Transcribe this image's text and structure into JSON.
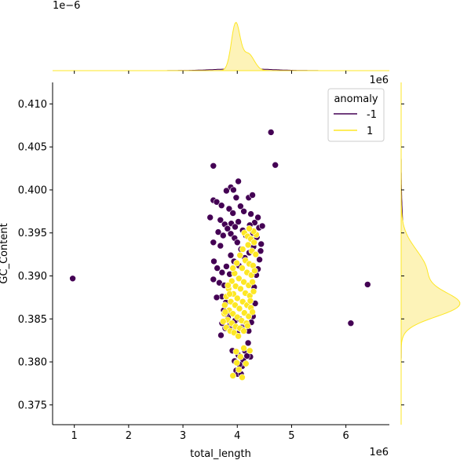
{
  "chart_data": {
    "type": "scatter",
    "title": "",
    "xlabel": "total_length",
    "ylabel": "GC_Content",
    "x_offset_label": "1e6",
    "y_offset_label": "",
    "top_marginal_offset_label": "1e−6",
    "right_marginal_offset_label": "1e6",
    "xlim": [
      0.6,
      6.8
    ],
    "ylim": [
      0.3727,
      0.4125
    ],
    "x_ticks": [
      1,
      2,
      3,
      4,
      5,
      6
    ],
    "x_tick_labels": [
      "1",
      "2",
      "3",
      "4",
      "5",
      "6"
    ],
    "y_ticks": [
      0.375,
      0.38,
      0.385,
      0.39,
      0.395,
      0.4,
      0.405,
      0.41
    ],
    "y_tick_labels": [
      "0.375",
      "0.380",
      "0.385",
      "0.390",
      "0.395",
      "0.400",
      "0.405",
      "0.410"
    ],
    "grid": false,
    "legend": {
      "title": "anomaly",
      "position": "top-right",
      "entries": [
        {
          "label": "-1",
          "color": "#440154"
        },
        {
          "label": "1",
          "color": "#fde725"
        }
      ]
    },
    "colors": {
      "anomaly_-1": "#440154",
      "anomaly_1": "#fde725",
      "kde_fill_1": "#fdf3b8"
    },
    "series": [
      {
        "name": "-1",
        "color": "#440154",
        "points": [
          [
            0.97,
            0.3897
          ],
          [
            3.56,
            0.4028
          ],
          [
            4.62,
            0.4067
          ],
          [
            4.7,
            0.4029
          ],
          [
            6.4,
            0.389
          ],
          [
            6.09,
            0.3845
          ],
          [
            4.02,
            0.401
          ],
          [
            3.88,
            0.4003
          ],
          [
            3.93,
            0.4
          ],
          [
            3.8,
            0.3999
          ],
          [
            3.98,
            0.3991
          ],
          [
            4.21,
            0.3991
          ],
          [
            4.28,
            0.3994
          ],
          [
            3.56,
            0.3988
          ],
          [
            3.62,
            0.3986
          ],
          [
            3.71,
            0.3982
          ],
          [
            3.85,
            0.3978
          ],
          [
            3.92,
            0.3973
          ],
          [
            4.06,
            0.3981
          ],
          [
            4.12,
            0.3975
          ],
          [
            4.25,
            0.3972
          ],
          [
            4.32,
            0.3962
          ],
          [
            4.38,
            0.3968
          ],
          [
            4.4,
            0.3956
          ],
          [
            4.46,
            0.3958
          ],
          [
            3.5,
            0.3968
          ],
          [
            3.69,
            0.3965
          ],
          [
            3.77,
            0.396
          ],
          [
            3.82,
            0.3955
          ],
          [
            3.89,
            0.3961
          ],
          [
            3.96,
            0.3957
          ],
          [
            4.02,
            0.3963
          ],
          [
            3.65,
            0.3951
          ],
          [
            3.74,
            0.3947
          ],
          [
            3.88,
            0.3949
          ],
          [
            3.95,
            0.3944
          ],
          [
            4.1,
            0.3953
          ],
          [
            4.16,
            0.3947
          ],
          [
            4.23,
            0.3959
          ],
          [
            4.29,
            0.395
          ],
          [
            4.36,
            0.3945
          ],
          [
            4.44,
            0.3937
          ],
          [
            4.43,
            0.3929
          ],
          [
            4.41,
            0.3919
          ],
          [
            4.38,
            0.3908
          ],
          [
            3.56,
            0.3939
          ],
          [
            3.69,
            0.3935
          ],
          [
            4.0,
            0.3939
          ],
          [
            4.07,
            0.3931
          ],
          [
            3.88,
            0.3924
          ],
          [
            3.94,
            0.3917
          ],
          [
            4.03,
            0.3912
          ],
          [
            4.14,
            0.3921
          ],
          [
            4.22,
            0.3927
          ],
          [
            4.3,
            0.3934
          ],
          [
            3.57,
            0.3917
          ],
          [
            3.63,
            0.3909
          ],
          [
            3.72,
            0.3904
          ],
          [
            3.8,
            0.3911
          ],
          [
            3.86,
            0.3902
          ],
          [
            4.35,
            0.3901
          ],
          [
            4.31,
            0.3887
          ],
          [
            4.33,
            0.3868
          ],
          [
            4.29,
            0.3853
          ],
          [
            4.26,
            0.3846
          ],
          [
            3.56,
            0.3896
          ],
          [
            3.67,
            0.3892
          ],
          [
            3.76,
            0.3889
          ],
          [
            3.72,
            0.3876
          ],
          [
            3.79,
            0.3869
          ],
          [
            3.62,
            0.3875
          ],
          [
            3.75,
            0.386
          ],
          [
            3.83,
            0.3852
          ],
          [
            3.72,
            0.3845
          ],
          [
            3.7,
            0.3831
          ],
          [
            3.78,
            0.3839
          ],
          [
            3.86,
            0.3842
          ],
          [
            3.92,
            0.3836
          ],
          [
            4.0,
            0.3833
          ],
          [
            4.08,
            0.384
          ],
          [
            4.16,
            0.3843
          ],
          [
            4.21,
            0.3836
          ],
          [
            3.96,
            0.3848
          ],
          [
            4.04,
            0.385
          ],
          [
            3.86,
            0.3838
          ],
          [
            3.82,
            0.3858
          ],
          [
            4.2,
            0.3822
          ],
          [
            4.14,
            0.3813
          ],
          [
            4.24,
            0.3806
          ],
          [
            4.11,
            0.3802
          ],
          [
            4.02,
            0.3808
          ],
          [
            3.95,
            0.3801
          ],
          [
            4.09,
            0.3795
          ],
          [
            3.98,
            0.379
          ],
          [
            4.01,
            0.3786
          ],
          [
            4.07,
            0.3786
          ],
          [
            4.04,
            0.3797
          ],
          [
            4.18,
            0.3807
          ],
          [
            3.91,
            0.3813
          ]
        ]
      },
      {
        "name": "1",
        "color": "#fde725",
        "points": [
          [
            4.13,
            0.395
          ],
          [
            4.19,
            0.3946
          ],
          [
            4.25,
            0.3943
          ],
          [
            4.31,
            0.3939
          ],
          [
            4.2,
            0.3936
          ],
          [
            4.1,
            0.3931
          ],
          [
            4.27,
            0.3929
          ],
          [
            4.34,
            0.3925
          ],
          [
            4.05,
            0.3924
          ],
          [
            4.15,
            0.3918
          ],
          [
            4.22,
            0.3914
          ],
          [
            4.29,
            0.3912
          ],
          [
            3.99,
            0.3915
          ],
          [
            4.09,
            0.3909
          ],
          [
            4.18,
            0.3904
          ],
          [
            4.26,
            0.3901
          ],
          [
            4.32,
            0.3906
          ],
          [
            3.95,
            0.3903
          ],
          [
            4.03,
            0.3897
          ],
          [
            4.12,
            0.3893
          ],
          [
            4.21,
            0.3889
          ],
          [
            4.28,
            0.3893
          ],
          [
            3.9,
            0.3894
          ],
          [
            3.97,
            0.3888
          ],
          [
            4.06,
            0.3885
          ],
          [
            4.15,
            0.388
          ],
          [
            4.23,
            0.3877
          ],
          [
            3.84,
            0.3885
          ],
          [
            3.93,
            0.3879
          ],
          [
            4.0,
            0.3874
          ],
          [
            4.1,
            0.387
          ],
          [
            4.18,
            0.3866
          ],
          [
            4.25,
            0.3863
          ],
          [
            3.8,
            0.3876
          ],
          [
            3.88,
            0.387
          ],
          [
            3.96,
            0.3866
          ],
          [
            4.04,
            0.3862
          ],
          [
            4.13,
            0.3857
          ],
          [
            4.21,
            0.3853
          ],
          [
            3.77,
            0.3866
          ],
          [
            3.85,
            0.386
          ],
          [
            3.92,
            0.3856
          ],
          [
            4.0,
            0.3852
          ],
          [
            4.08,
            0.3848
          ],
          [
            4.17,
            0.3845
          ],
          [
            3.76,
            0.3856
          ],
          [
            3.82,
            0.3849
          ],
          [
            3.9,
            0.3845
          ],
          [
            3.97,
            0.3841
          ],
          [
            4.05,
            0.3839
          ],
          [
            4.12,
            0.3836
          ],
          [
            3.8,
            0.384
          ],
          [
            3.87,
            0.3836
          ],
          [
            3.94,
            0.3834
          ],
          [
            4.02,
            0.383
          ],
          [
            3.74,
            0.3847
          ],
          [
            3.78,
            0.3858
          ],
          [
            3.83,
            0.3889
          ],
          [
            3.86,
            0.3879
          ],
          [
            4.24,
            0.3871
          ],
          [
            4.3,
            0.3882
          ],
          [
            4.28,
            0.3858
          ],
          [
            4.19,
            0.3842
          ],
          [
            3.98,
            0.3812
          ],
          [
            4.06,
            0.3806
          ],
          [
            4.12,
            0.3816
          ],
          [
            3.99,
            0.3799
          ],
          [
            4.03,
            0.3791
          ],
          [
            4.09,
            0.3782
          ],
          [
            3.92,
            0.3784
          ],
          [
            4.16,
            0.3798
          ],
          [
            4.23,
            0.3813
          ],
          [
            3.92,
            0.3909
          ],
          [
            4.35,
            0.3948
          ],
          [
            4.3,
            0.3952
          ],
          [
            4.22,
            0.3955
          ]
        ]
      }
    ],
    "marginal_x": {
      "series": [
        {
          "name": "1",
          "peak_x": 3.97,
          "bandwidth": 0.12,
          "relative_height": 1.0
        },
        {
          "name": "-1",
          "peak_x": 4.1,
          "bandwidth": 0.5,
          "relative_height": 0.035
        }
      ]
    },
    "marginal_y": {
      "series": [
        {
          "name": "1",
          "peak_y": 0.3868,
          "bandwidth": 0.0023,
          "relative_height": 1.0
        },
        {
          "name": "-1",
          "peak_y": 0.392,
          "bandwidth": 0.004,
          "relative_height": 0.05
        }
      ]
    }
  }
}
